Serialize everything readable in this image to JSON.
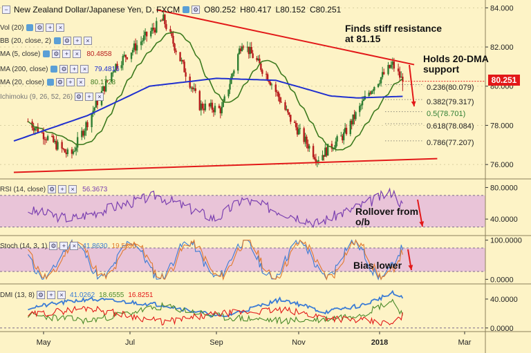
{
  "header": {
    "title": "New Zealand Dollar/Japanese Yen, D, FXCM",
    "ohlc": [
      "O80.252",
      "H80.417",
      "L80.152",
      "C80.251"
    ]
  },
  "indicators": {
    "vol": "Vol (20)",
    "bb": "BB (20, close, 2)",
    "ma5": {
      "label": "MA (5, close)",
      "value": "80.4858"
    },
    "ma200": {
      "label": "MA (200, close)",
      "value": "79.4816"
    },
    "ma20": {
      "label": "MA (20, close)",
      "value": "80.1728"
    },
    "ichimoku": "Ichimoku (9, 26, 52, 26)"
  },
  "annotations": {
    "resistance": "Finds stiff resistance\nat 81.15",
    "support": "Holds 20-DMA\nsupport",
    "rsi_note": "Rollover from\no/b",
    "stoch_note": "Bias lower"
  },
  "price_tag": "80.251",
  "colors": {
    "background": "#fdf3c6",
    "candle_up": "#2e7d32",
    "candle_down": "#b71c1c",
    "ma20": "#3c7a1e",
    "ma200": "#1f2fcf",
    "trendline": "#e21818",
    "rsi": "#7a3fb0",
    "stoch_k": "#3a7bd5",
    "stoch_d": "#e07a2e",
    "dmi_adx": "#3a7bd5",
    "dmi_plus": "#4a8a2a",
    "dmi_minus": "#e21818",
    "band": "#e9c4d8"
  },
  "chart_data": [
    {
      "type": "candlestick",
      "title": "New Zealand Dollar/Japanese Yen, D, FXCM",
      "x_ticks": [
        "May",
        "Jul",
        "Sep",
        "Nov",
        "2018",
        "Mar"
      ],
      "y_ticks": [
        "76.000",
        "78.000",
        "80.000",
        "82.000",
        "84.000"
      ],
      "ylim": [
        75.3,
        84.4
      ],
      "last_close": 80.251,
      "fib_levels": [
        {
          "label": "0.236(80.079)",
          "value": 80.079
        },
        {
          "label": "0.382(79.317)",
          "value": 79.317
        },
        {
          "label": "0.5(78.701)",
          "value": 78.701
        },
        {
          "label": "0.618(78.084)",
          "value": 78.084
        },
        {
          "label": "0.786(77.207)",
          "value": 77.207
        }
      ],
      "anchors": {
        "x": [
          "Apr 20",
          "May 20",
          "Jun 20",
          "Jul 25",
          "Aug 20",
          "Sep 05",
          "Sep 20",
          "Oct 10",
          "Oct 25",
          "Nov 15",
          "Dec 05",
          "Dec 25",
          "Jan 10",
          "Jan 17"
        ],
        "close": [
          78.2,
          76.4,
          81.0,
          83.4,
          79.0,
          78.8,
          82.3,
          80.4,
          78.4,
          76.3,
          77.5,
          79.8,
          81.1,
          80.25
        ]
      },
      "ma200_anchors": {
        "x": [
          "Apr 10",
          "Jun 01",
          "Jul 15",
          "Sep 01",
          "Oct 15",
          "Nov 25",
          "Dec 15",
          "Jan 17"
        ],
        "y": [
          77.2,
          78.5,
          80.0,
          80.4,
          80.3,
          79.5,
          79.4,
          79.48
        ]
      },
      "trendlines": {
        "resistance": {
          "from": {
            "x": "Jul 20",
            "y": 83.9
          },
          "to": {
            "x": "Jan 25",
            "y": 81.1
          }
        },
        "support": {
          "from": {
            "x": "Apr 10",
            "y": 75.6
          },
          "to": {
            "x": "Feb 10",
            "y": 76.3
          }
        }
      }
    },
    {
      "type": "line",
      "title": "RSI (14, close)",
      "value_label": "56.3673",
      "y_ticks": [
        "40.0000",
        "80.0000"
      ],
      "ylim": [
        20,
        90
      ],
      "band": [
        30,
        70
      ],
      "anchors": {
        "x": [
          "Apr 10",
          "May 20",
          "Jul 20",
          "Sep 01",
          "Sep 20",
          "Nov 15",
          "Dec 25",
          "Jan 10",
          "Jan 17"
        ],
        "y": [
          55,
          40,
          70,
          40,
          65,
          35,
          62,
          75,
          56.4
        ]
      }
    },
    {
      "type": "line",
      "title": "Stoch (14, 3, 1)",
      "values": [
        "41.8630",
        "19.5890"
      ],
      "y_ticks": [
        "0.0000",
        "100.0000"
      ],
      "ylim": [
        -10,
        110
      ],
      "band": [
        20,
        80
      ],
      "series": [
        {
          "name": "%K"
        },
        {
          "name": "%D"
        }
      ]
    },
    {
      "type": "line",
      "title": "DMI (13, 8)",
      "values": [
        "41.0262",
        "18.6555",
        "16.8251"
      ],
      "y_ticks": [
        "0.0000",
        "40.0000"
      ],
      "ylim": [
        -5,
        60
      ],
      "series": [
        {
          "name": "ADX"
        },
        {
          "name": "+DI"
        },
        {
          "name": "-DI"
        }
      ]
    }
  ]
}
